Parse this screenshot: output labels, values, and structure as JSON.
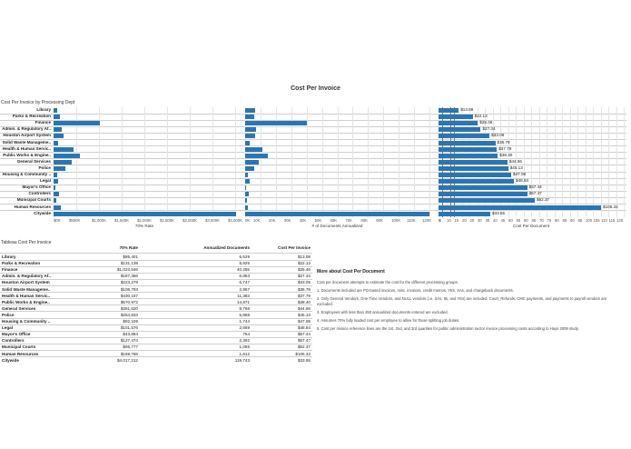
{
  "title": "Cost Per Invoice",
  "subtitle": "Cost Per Invoice by Processing Dept",
  "bar_color": "#2a75b3",
  "chart_data": [
    {
      "type": "bar",
      "xlabel": "70% Rate",
      "xlim": [
        0,
        4000000
      ],
      "ticks": [
        "$0K",
        "$500K",
        "$1,000K",
        "$1,500K",
        "$2,000K",
        "$2,500K",
        "$3,000K",
        "$3,500K",
        "$4,000K"
      ],
      "categories": [
        "Library",
        "Parks & Recreation",
        "Finance",
        "Admin. & Regulatory Af..",
        "Houston Airport System",
        "Solid Waste Manageme..",
        "Health & Human Servic..",
        "Public Works & Engine..",
        "General Services",
        "Police",
        "Housing & Community ..",
        "Legal",
        "Mayor's Office",
        "Controllers",
        "Municipal Courts",
        "Human Resources",
        "Citywide"
      ],
      "values": [
        85401,
        131139,
        1023546,
        187356,
        223279,
        108793,
        430167,
        570972,
        391620,
        264833,
        82106,
        101576,
        43884,
        127474,
        65777,
        169768,
        4017212
      ]
    },
    {
      "type": "bar",
      "xlabel": "# of Documents Annualized",
      "xlim": [
        0,
        120000
      ],
      "ticks": [
        "0K",
        "10K",
        "20K",
        "30K",
        "40K",
        "50K",
        "60K",
        "70K",
        "80K",
        "90K",
        "100K",
        "110K",
        "120K"
      ],
      "categories": [
        "Library",
        "Parks & Recreation",
        "Finance",
        "Admin. & Regulatory Af..",
        "Houston Airport System",
        "Solid Waste Manageme..",
        "Health & Human Servic..",
        "Public Works & Engine..",
        "General Services",
        "Police",
        "Housing & Community ..",
        "Legal",
        "Mayor's Office",
        "Controllers",
        "Municipal Courts",
        "Human Resources",
        "Citywide"
      ],
      "values": [
        6529,
        5925,
        40255,
        6853,
        6747,
        2957,
        11383,
        14871,
        8768,
        5868,
        1744,
        2669,
        764,
        2392,
        1055,
        1612,
        119743
      ]
    },
    {
      "type": "bar",
      "xlabel": "Cost Per Document",
      "xlim": [
        0,
        120
      ],
      "ticks": [
        "0",
        "5",
        "10",
        "15",
        "20",
        "25",
        "30",
        "35",
        "40",
        "45",
        "50",
        "55",
        "60",
        "65",
        "70",
        "75",
        "80",
        "85",
        "90",
        "95",
        "100",
        "105",
        "110",
        "115",
        "120"
      ],
      "reference_lines": [
        2.5,
        7.5,
        10
      ],
      "categories": [
        "Library",
        "Parks & Recreation",
        "Finance",
        "Admin. & Regulatory Af..",
        "Houston Airport System",
        "Solid Waste Manageme..",
        "Health & Human Servic..",
        "Public Works & Engine..",
        "General Services",
        "Police",
        "Housing & Community ..",
        "Legal",
        "Mayor's Office",
        "Controllers",
        "Municipal Courts",
        "Human Resources",
        "Citywide"
      ],
      "values": [
        13.08,
        22.13,
        25.46,
        27.34,
        33.09,
        36.79,
        37.79,
        38.4,
        44.66,
        45.13,
        47.08,
        48.84,
        57.44,
        57.47,
        62.37,
        105.32,
        33.55
      ],
      "labels": [
        "$13.08",
        "$22.13",
        "$25.46",
        "$27.34",
        "$33.09",
        "$36.79",
        "$37.79",
        "$38.40",
        "$44.66",
        "$45.13",
        "$47.08",
        "$48.84",
        "$57.44",
        "$57.47",
        "$62.37",
        "$105.32",
        "$33.55"
      ]
    }
  ],
  "table": {
    "title": "Tableau Cost Per Invoice",
    "headers": [
      "70% Rate",
      "Annualized Documents",
      "Cost Per Invoice"
    ],
    "rows": [
      [
        "Library",
        "$85,401",
        "6,529",
        "$13.08"
      ],
      [
        "Parks & Recreation",
        "$131,139",
        "5,925",
        "$22.13"
      ],
      [
        "Finance",
        "$1,023,546",
        "40,255",
        "$25.46"
      ],
      [
        "Admin. & Regulatory Af..",
        "$187,356",
        "6,853",
        "$27.34"
      ],
      [
        "Houston Airport System",
        "$223,279",
        "6,747",
        "$33.09"
      ],
      [
        "Solid Waste Manageme..",
        "$108,793",
        "2,957",
        "$36.79"
      ],
      [
        "Health & Human Servic..",
        "$430,167",
        "11,383",
        "$37.79"
      ],
      [
        "Public Works & Engine..",
        "$570,972",
        "14,871",
        "$38.40"
      ],
      [
        "General Services",
        "$391,620",
        "8,768",
        "$44.66"
      ],
      [
        "Police",
        "$264,833",
        "5,868",
        "$45.13"
      ],
      [
        "Housing & Community ..",
        "$82,106",
        "1,744",
        "$47.08"
      ],
      [
        "Legal",
        "$101,576",
        "2,669",
        "$48.84"
      ],
      [
        "Mayor's Office",
        "$43,884",
        "764",
        "$57.44"
      ],
      [
        "Controllers",
        "$127,474",
        "2,392",
        "$57.47"
      ],
      [
        "Municipal Courts",
        "$65,777",
        "1,055",
        "$62.37"
      ],
      [
        "Human Resources",
        "$169,768",
        "1,612",
        "$105.32"
      ],
      [
        "Citywide",
        "$4,017,212",
        "119,743",
        "$33.55"
      ]
    ]
  },
  "notes": {
    "title": "More about Cost Per Document",
    "items": [
      "Cost per document attempts to estimate the cost for the different processing groups.",
      "1. Documents included are PO-based invoices, misc. invoices, credit memos, YEs, SAs, and chargeback documents.",
      "2. Only General Vendors, One-Time Vendors, and NULL vendors (i.e. SAs, Its, and YEs) are included. Court_Refunds, CMC payments, and payments to payroll vendors are excluded.",
      "3. Employees with less than 250 annualized documents entered are excluded.",
      "4. Assumes 70% fully loaded cost per employee to allow for those splitting job duties.",
      "5. Cost per invoice reference lines are the 1st, 2nd, and 3rd quartiles for public administration sector invoice processing costs according to Hays 2009 study."
    ]
  }
}
